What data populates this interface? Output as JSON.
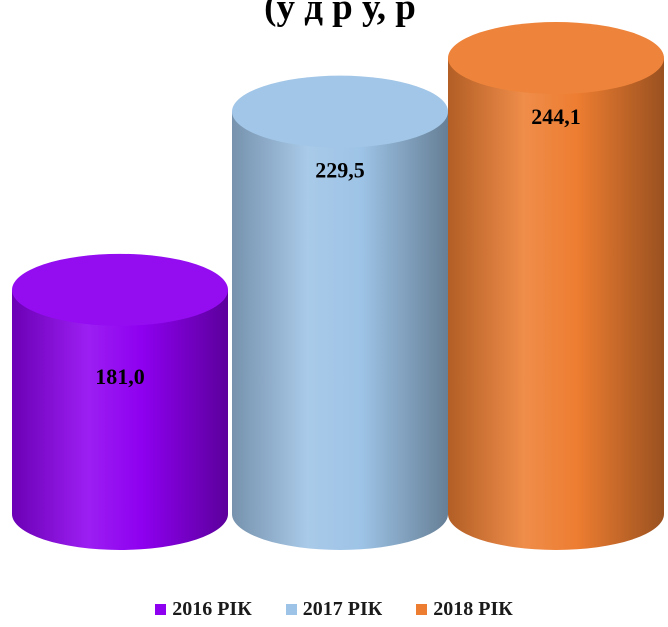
{
  "chart_data": {
    "type": "bar",
    "title": "(у … … … … … …",
    "title_visible_fragment": "(у                д               р    у,           р",
    "categories": [
      "2016 РІК",
      "2017 РІК",
      "2018 РІК"
    ],
    "values": [
      181.0,
      229.5,
      244.1
    ],
    "value_labels": [
      "181,0",
      "229,5",
      "244,1"
    ],
    "bar_shape": "cylinder-3d",
    "legend_position": "bottom",
    "grid": false,
    "colors": [
      "#8e00f0",
      "#9dc3e6",
      "#ed7d31"
    ]
  }
}
